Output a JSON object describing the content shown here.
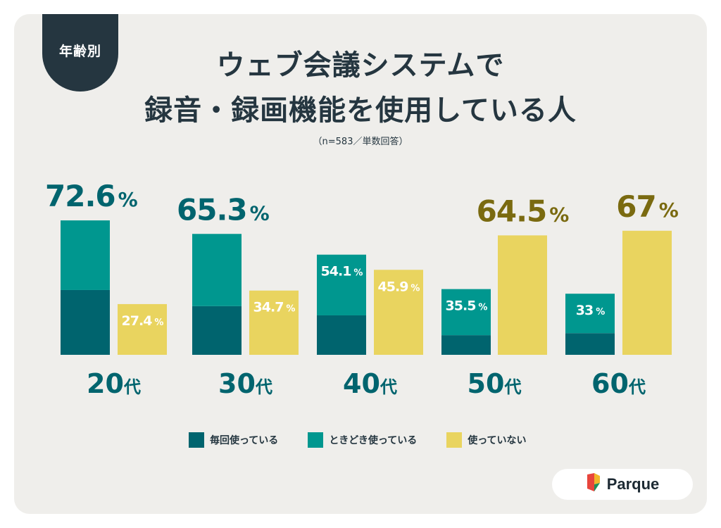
{
  "badge": "年齢別",
  "title_line1": "ウェブ会議システムで",
  "title_line2": "録音・録画機能を使用している人",
  "note": "（n=583／単数回答）",
  "logo_text": "Parque",
  "colors": {
    "every_time": "#00646e",
    "sometimes": "#00978f",
    "not_using": "#e9d45f",
    "using_total_label": "#00646e",
    "not_using_total_label": "#7a6a10"
  },
  "chart_data": {
    "type": "bar",
    "stacked": true,
    "categories": [
      "20代",
      "30代",
      "40代",
      "50代",
      "60代"
    ],
    "series": [
      {
        "name": "毎回使っている",
        "values": [
          35,
          26.3,
          21.3,
          10.6,
          11.7
        ],
        "group": "using"
      },
      {
        "name": "ときどき使っている",
        "values": [
          37.6,
          39,
          32.8,
          24.9,
          21.3
        ],
        "group": "using"
      },
      {
        "name": "使っていない",
        "values": [
          27.4,
          34.7,
          45.9,
          64.5,
          67
        ],
        "group": "not_using"
      }
    ],
    "using_totals": [
      "72.6",
      "65.3",
      "54.1",
      "35.5",
      "33"
    ],
    "not_using_totals": [
      "27.4",
      "34.7",
      "45.9",
      "64.5",
      "67"
    ],
    "percent_sign": "%",
    "highlight": [
      "using",
      "using",
      "none",
      "not_using",
      "not_using"
    ],
    "ylim": [
      0,
      100
    ],
    "legend": [
      "毎回使っている",
      "ときどき使っている",
      "使っていない"
    ],
    "legend_position": "bottom"
  }
}
